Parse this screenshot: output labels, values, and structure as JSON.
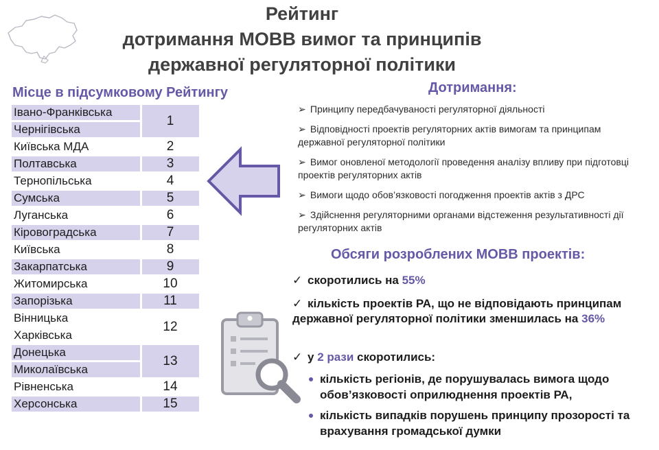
{
  "title": {
    "line1": "Рейтинг",
    "line2": "дотримання МОВВ вимог та принципів",
    "line3": "державної регуляторної політики"
  },
  "ranking": {
    "heading": "Місце в підсумковому Рейтингу",
    "rows": [
      {
        "name": "Івано-Франківська",
        "place": "1",
        "shaded": true
      },
      {
        "name": "Чернігівська",
        "place": "1",
        "shaded": true
      },
      {
        "name": "Київська МДА",
        "place": "2",
        "shaded": false
      },
      {
        "name": "Полтавська",
        "place": "3",
        "shaded": true
      },
      {
        "name": "Тернопільська",
        "place": "4",
        "shaded": false
      },
      {
        "name": "Сумська",
        "place": "5",
        "shaded": true
      },
      {
        "name": "Луганська",
        "place": "6",
        "shaded": false
      },
      {
        "name": "Кіровоградська",
        "place": "7",
        "shaded": true
      },
      {
        "name": "Київська",
        "place": "8",
        "shaded": false
      },
      {
        "name": "Закарпатська",
        "place": "9",
        "shaded": true
      },
      {
        "name": "Житомирська",
        "place": "10",
        "shaded": false
      },
      {
        "name": "Запорізька",
        "place": "11",
        "shaded": true
      },
      {
        "name": "Вінницька",
        "place": "12",
        "shaded": false
      },
      {
        "name": "Харківська",
        "place": "12",
        "shaded": false
      },
      {
        "name": "Донецька",
        "place": "13",
        "shaded": true
      },
      {
        "name": "Миколаївська",
        "place": "13",
        "shaded": true
      },
      {
        "name": "Рівненська",
        "place": "14",
        "shaded": false
      },
      {
        "name": "Херсонська",
        "place": "15",
        "shaded": true
      }
    ]
  },
  "compliance": {
    "heading": "Дотримання:",
    "marker": "➢",
    "items": [
      "Принципу передбачуваності регуляторної діяльності",
      "Відповідності проектів регуляторних актів вимогам та принципам державної регуляторної  політики",
      "Вимог оновленої методології проведення аналізу впливу при підготовці проектів регуляторних актів",
      "Вимоги щодо обов’язковості погодження проектів актів з ДРС",
      "Здійснення регуляторними органами відстеження результативності дії регуляторних актів"
    ]
  },
  "volumes": {
    "heading": "Обсяги розроблених МОВВ проектів:",
    "check": "✓",
    "r1_text": "скоротились на ",
    "r1_pct": "55%",
    "r2_text": "кількість проектів РА, що не відповідають принципам державної регуляторної політики зменшилась на ",
    "r2_pct": "36%",
    "r3_pre": "у ",
    "r3_pct": "2 рази",
    "r3_post": " скоротились:",
    "sub1": "кількість регіонів, де порушувалась вимога щодо обов’язковості оприлюднення проектів РА,",
    "sub2": "кількість випадків порушень принципу прозорості та врахування громадської думки"
  },
  "colors": {
    "accent": "#6658a6",
    "row_shade": "#d6d2ec",
    "title": "#404040"
  },
  "icons": [
    "ukraine-map-icon",
    "left-arrow-icon",
    "clipboard-magnifier-icon"
  ]
}
